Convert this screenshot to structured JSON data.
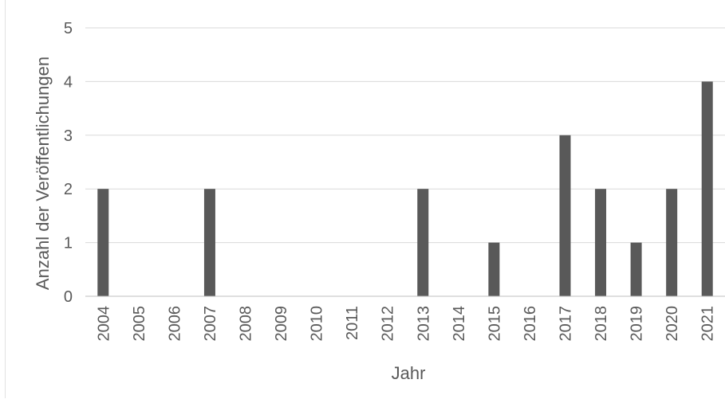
{
  "chart_data": {
    "type": "bar",
    "categories": [
      "2004",
      "2005",
      "2006",
      "2007",
      "2008",
      "2009",
      "2010",
      "2011",
      "2012",
      "2013",
      "2014",
      "2015",
      "2016",
      "2017",
      "2018",
      "2019",
      "2020",
      "2021"
    ],
    "values": [
      2,
      0,
      0,
      2,
      0,
      0,
      0,
      0,
      0,
      2,
      0,
      1,
      0,
      3,
      2,
      1,
      2,
      4
    ],
    "title": "",
    "xlabel": "Jahr",
    "ylabel": "Anzahl der Veröffentlichungen",
    "ylim": [
      0,
      5
    ],
    "yticks": [
      0,
      1,
      2,
      3,
      4,
      5
    ],
    "grid": true,
    "legend": "none",
    "colors": {
      "bar": "#595959",
      "grid": "#d9d9d9",
      "axis": "#bfbfbf",
      "text": "#595959"
    }
  }
}
